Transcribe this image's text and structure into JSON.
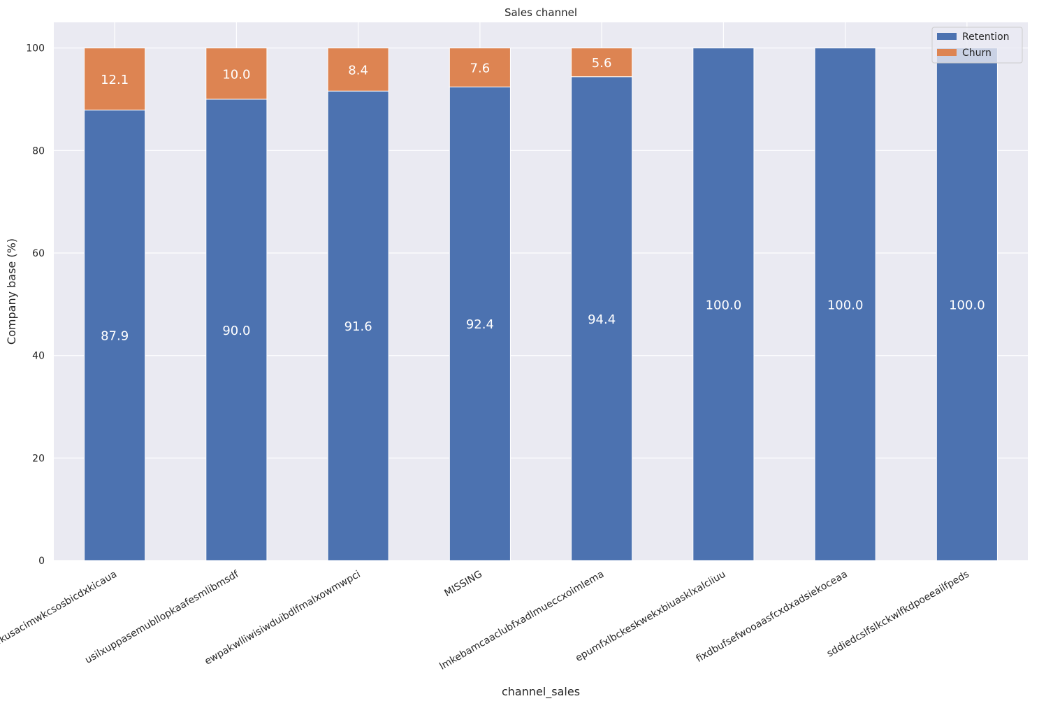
{
  "chart_data": {
    "type": "bar",
    "stacked": true,
    "title": "Sales channel",
    "xlabel": "channel_sales",
    "ylabel": "Company base (%)",
    "ylim": [
      0,
      105
    ],
    "yticks": [
      0,
      20,
      40,
      60,
      80,
      100
    ],
    "grid": true,
    "legend_position": "top-right",
    "categories": [
      "foosdfpfkusacimwkcsosbicdxkicaua",
      "usilxuppasemubllopkaafesmlibmsdf",
      "ewpakwlliwisiwduibdlfmalxowmwpci",
      "MISSING",
      "lmkebamcaaclubfxadlmueccxoimlema",
      "epumfxlbckeskwekxbiuasklxalciiuu",
      "fixdbufsefwooaasfcxdxadsiekoceaa",
      "sddiedcslfslkckwlfkdpoeeailfpeds"
    ],
    "series": [
      {
        "name": "Retention",
        "color": "#4c72b0",
        "values": [
          87.9,
          90.0,
          91.6,
          92.4,
          94.4,
          100.0,
          100.0,
          100.0
        ]
      },
      {
        "name": "Churn",
        "color": "#dd8452",
        "values": [
          12.1,
          10.0,
          8.4,
          7.6,
          5.6,
          0.0,
          0.0,
          0.0
        ]
      }
    ],
    "data_labels": {
      "Retention": [
        "87.9",
        "90.0",
        "91.6",
        "92.4",
        "94.4",
        "100.0",
        "100.0",
        "100.0"
      ],
      "Churn": [
        "12.1",
        "10.0",
        "8.4",
        "7.6",
        "5.6",
        "",
        "",
        ""
      ]
    },
    "style": {
      "plot_background": "#eaeaf2",
      "grid_color": "#ffffff",
      "text_color": "#262626",
      "data_label_color": "#ffffff"
    }
  }
}
